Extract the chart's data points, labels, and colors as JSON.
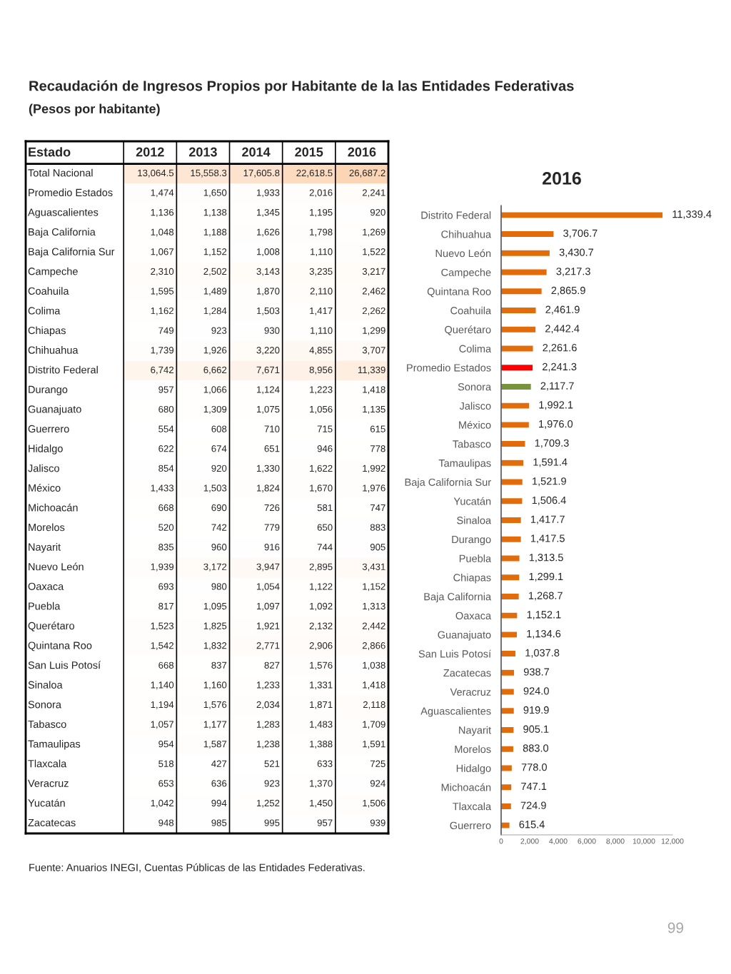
{
  "chart_data": [
    {
      "type": "heatmap",
      "title": "Recaudación de Ingresos Propios por Habitante de la las Entidades Federativas",
      "subtitle": "(Pesos por habitante)",
      "ylabel": "Estado",
      "annotations": [
        "Fuente: Anuarios INEGI, Cuentas Públicas de las Entidades Federativas."
      ],
      "categories": [
        "2012",
        "2013",
        "2014",
        "2015",
        "2016"
      ],
      "y_categories": [
        "Total Nacional",
        "Promedio Estados",
        "Aguascalientes",
        "Baja California",
        "Baja California Sur",
        "Campeche",
        "Coahuila",
        "Colima",
        "Chiapas",
        "Chihuahua",
        "Distrito Federal",
        "Durango",
        "Guanajuato",
        "Guerrero",
        "Hidalgo",
        "Jalisco",
        "México",
        "Michoacán",
        "Morelos",
        "Nayarit",
        "Nuevo León",
        "Oaxaca",
        "Puebla",
        "Querétaro",
        "Quintana Roo",
        "San Luis Potosí",
        "Sinaloa",
        "Sonora",
        "Tabasco",
        "Tamaulipas",
        "Tlaxcala",
        "Veracruz",
        "Yucatán",
        "Zacatecas"
      ],
      "cells": [
        [
          13064.5,
          15558.3,
          17605.8,
          22618.5,
          26687.2
        ],
        [
          1474,
          1650,
          1933,
          2016,
          2241
        ],
        [
          1136,
          1138,
          1345,
          1195,
          920
        ],
        [
          1048,
          1188,
          1626,
          1798,
          1269
        ],
        [
          1067,
          1152,
          1008,
          1110,
          1522
        ],
        [
          2310,
          2502,
          3143,
          3235,
          3217
        ],
        [
          1595,
          1489,
          1870,
          2110,
          2462
        ],
        [
          1162,
          1284,
          1503,
          1417,
          2262
        ],
        [
          749,
          923,
          930,
          1110,
          1299
        ],
        [
          1739,
          1926,
          3220,
          4855,
          3707
        ],
        [
          6742,
          6662,
          7671,
          8956,
          11339
        ],
        [
          957,
          1066,
          1124,
          1223,
          1418
        ],
        [
          680,
          1309,
          1075,
          1056,
          1135
        ],
        [
          554,
          608,
          710,
          715,
          615
        ],
        [
          622,
          674,
          651,
          946,
          778
        ],
        [
          854,
          920,
          1330,
          1622,
          1992
        ],
        [
          1433,
          1503,
          1824,
          1670,
          1976
        ],
        [
          668,
          690,
          726,
          581,
          747
        ],
        [
          520,
          742,
          779,
          650,
          883
        ],
        [
          835,
          960,
          916,
          744,
          905
        ],
        [
          1939,
          3172,
          3947,
          2895,
          3431
        ],
        [
          693,
          980,
          1054,
          1122,
          1152
        ],
        [
          817,
          1095,
          1097,
          1092,
          1313
        ],
        [
          1523,
          1825,
          1921,
          2132,
          2442
        ],
        [
          1542,
          1832,
          2771,
          2906,
          2866
        ],
        [
          668,
          837,
          827,
          1576,
          1038
        ],
        [
          1140,
          1160,
          1233,
          1331,
          1418
        ],
        [
          1194,
          1576,
          2034,
          1871,
          2118
        ],
        [
          1057,
          1177,
          1283,
          1483,
          1709
        ],
        [
          954,
          1587,
          1238,
          1388,
          1591
        ],
        [
          518,
          427,
          521,
          633,
          725
        ],
        [
          653,
          636,
          923,
          1370,
          924
        ],
        [
          1042,
          994,
          1252,
          1450,
          1506
        ],
        [
          948,
          985,
          995,
          957,
          939
        ]
      ],
      "cell_labels": [
        [
          "13,064.5",
          "15,558.3",
          "17,605.8",
          "22,618.5",
          "26,687.2"
        ],
        [
          "1,474",
          "1,650",
          "1,933",
          "2,016",
          "2,241"
        ],
        [
          "1,136",
          "1,138",
          "1,345",
          "1,195",
          "920"
        ],
        [
          "1,048",
          "1,188",
          "1,626",
          "1,798",
          "1,269"
        ],
        [
          "1,067",
          "1,152",
          "1,008",
          "1,110",
          "1,522"
        ],
        [
          "2,310",
          "2,502",
          "3,143",
          "3,235",
          "3,217"
        ],
        [
          "1,595",
          "1,489",
          "1,870",
          "2,110",
          "2,462"
        ],
        [
          "1,162",
          "1,284",
          "1,503",
          "1,417",
          "2,262"
        ],
        [
          "749",
          "923",
          "930",
          "1,110",
          "1,299"
        ],
        [
          "1,739",
          "1,926",
          "3,220",
          "4,855",
          "3,707"
        ],
        [
          "6,742",
          "6,662",
          "7,671",
          "8,956",
          "11,339"
        ],
        [
          "957",
          "1,066",
          "1,124",
          "1,223",
          "1,418"
        ],
        [
          "680",
          "1,309",
          "1,075",
          "1,056",
          "1,135"
        ],
        [
          "554",
          "608",
          "710",
          "715",
          "615"
        ],
        [
          "622",
          "674",
          "651",
          "946",
          "778"
        ],
        [
          "854",
          "920",
          "1,330",
          "1,622",
          "1,992"
        ],
        [
          "1,433",
          "1,503",
          "1,824",
          "1,670",
          "1,976"
        ],
        [
          "668",
          "690",
          "726",
          "581",
          "747"
        ],
        [
          "520",
          "742",
          "779",
          "650",
          "883"
        ],
        [
          "835",
          "960",
          "916",
          "744",
          "905"
        ],
        [
          "1,939",
          "3,172",
          "3,947",
          "2,895",
          "3,431"
        ],
        [
          "693",
          "980",
          "1,054",
          "1,122",
          "1,152"
        ],
        [
          "817",
          "1,095",
          "1,097",
          "1,092",
          "1,313"
        ],
        [
          "1,523",
          "1,825",
          "1,921",
          "2,132",
          "2,442"
        ],
        [
          "1,542",
          "1,832",
          "2,771",
          "2,906",
          "2,866"
        ],
        [
          "668",
          "837",
          "827",
          "1,576",
          "1,038"
        ],
        [
          "1,140",
          "1,160",
          "1,233",
          "1,331",
          "1,418"
        ],
        [
          "1,194",
          "1,576",
          "2,034",
          "1,871",
          "2,118"
        ],
        [
          "1,057",
          "1,177",
          "1,283",
          "1,483",
          "1,709"
        ],
        [
          "954",
          "1,587",
          "1,238",
          "1,388",
          "1,591"
        ],
        [
          "518",
          "427",
          "521",
          "633",
          "725"
        ],
        [
          "653",
          "636",
          "923",
          "1,370",
          "924"
        ],
        [
          "1,042",
          "994",
          "1,252",
          "1,450",
          "1,506"
        ],
        [
          "948",
          "985",
          "995",
          "957",
          "939"
        ]
      ]
    },
    {
      "type": "bar",
      "orientation": "horizontal",
      "title": "2016",
      "categories": [
        "Distrito Federal",
        "Chihuahua",
        "Nuevo León",
        "Campeche",
        "Quintana Roo",
        "Coahuila",
        "Querétaro",
        "Colima",
        "Promedio Estados",
        "Sonora",
        "Jalisco",
        "México",
        "Tabasco",
        "Tamaulipas",
        "Baja California Sur",
        "Yucatán",
        "Sinaloa",
        "Durango",
        "Puebla",
        "Chiapas",
        "Baja California",
        "Oaxaca",
        "Guanajuato",
        "San Luis Potosí",
        "Zacatecas",
        "Veracruz",
        "Aguascalientes",
        "Nayarit",
        "Morelos",
        "Hidalgo",
        "Michoacán",
        "Tlaxcala",
        "Guerrero"
      ],
      "values": [
        11339.4,
        3706.7,
        3430.7,
        3217.3,
        2865.9,
        2461.9,
        2442.4,
        2261.6,
        2241.3,
        2117.7,
        1992.1,
        1976.0,
        1709.3,
        1591.4,
        1521.9,
        1506.4,
        1417.7,
        1417.5,
        1313.5,
        1299.1,
        1268.7,
        1152.1,
        1134.6,
        1037.8,
        938.7,
        924.0,
        919.9,
        905.1,
        883.0,
        778.0,
        747.1,
        724.9,
        615.4
      ],
      "value_labels": [
        "11,339.4",
        "3,706.7",
        "3,430.7",
        "3,217.3",
        "2,865.9",
        "2,461.9",
        "2,442.4",
        "2,261.6",
        "2,241.3",
        "2,117.7",
        "1,992.1",
        "1,976.0",
        "1,709.3",
        "1,591.4",
        "1,521.9",
        "1,506.4",
        "1,417.7",
        "1,417.5",
        "1,313.5",
        "1,299.1",
        "1,268.7",
        "1,152.1",
        "1,134.6",
        "1,037.8",
        "938.7",
        "924.0",
        "919.9",
        "905.1",
        "883.0",
        "778.0",
        "747.1",
        "724.9",
        "615.4"
      ],
      "colors": [
        "#e36c0a",
        "#e36c0a",
        "#e36c0a",
        "#e36c0a",
        "#e36c0a",
        "#e36c0a",
        "#e36c0a",
        "#e36c0a",
        "#ff0000",
        "#77933c",
        "#e36c0a",
        "#e36c0a",
        "#e36c0a",
        "#e36c0a",
        "#e36c0a",
        "#e36c0a",
        "#e36c0a",
        "#e36c0a",
        "#e36c0a",
        "#e36c0a",
        "#e36c0a",
        "#e36c0a",
        "#e36c0a",
        "#e36c0a",
        "#e36c0a",
        "#e36c0a",
        "#e36c0a",
        "#e36c0a",
        "#e36c0a",
        "#e36c0a",
        "#e36c0a",
        "#e36c0a",
        "#e36c0a"
      ],
      "xlim": [
        0,
        12000
      ],
      "xticks": [
        0,
        {
          "value": 2000,
          "label": "2,000"
        },
        {
          "value": 4000,
          "label": "4,000"
        },
        {
          "value": 6000,
          "label": "6,000"
        },
        {
          "value": 8000,
          "label": "8,000"
        },
        {
          "value": 10000,
          "label": "10,000"
        },
        {
          "value": 12000,
          "label": "12,000"
        }
      ],
      "annotations": [
        "99"
      ]
    }
  ]
}
